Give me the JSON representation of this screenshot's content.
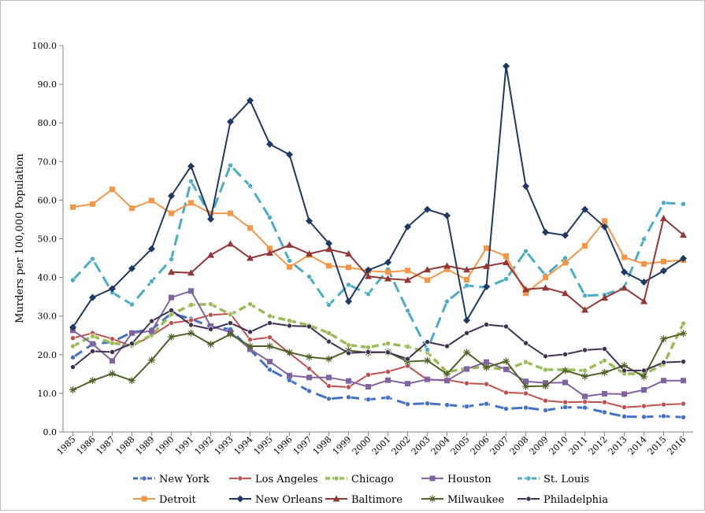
{
  "chart_data": {
    "type": "line",
    "title": "",
    "xlabel": "",
    "ylabel": "Murders per 100,000 Population",
    "ylim": [
      0,
      100
    ],
    "yticks": [
      "0.0",
      "10.0",
      "20.0",
      "30.0",
      "40.0",
      "50.0",
      "60.0",
      "70.0",
      "80.0",
      "90.0",
      "100.0"
    ],
    "grid": false,
    "legend_position": "bottom",
    "x": [
      "1985",
      "1986",
      "1987",
      "1988",
      "1989",
      "1990",
      "1991",
      "1992",
      "1993",
      "1994",
      "1995",
      "1996",
      "1997",
      "1998",
      "1999",
      "2000",
      "2001",
      "2002",
      "2003",
      "2004",
      "2005",
      "2006",
      "2007",
      "2008",
      "2009",
      "2010",
      "2011",
      "2012",
      "2013",
      "2014",
      "2015",
      "2016"
    ],
    "series": [
      {
        "name": "New York",
        "color": "#4472c4",
        "dash": "long-dash",
        "marker": "circle",
        "values": [
          19.3,
          22.7,
          23.3,
          25.8,
          26.5,
          30.7,
          29.3,
          27.2,
          26.6,
          21.3,
          16.1,
          13.4,
          10.6,
          8.6,
          9.0,
          8.4,
          8.9,
          7.2,
          7.4,
          7.0,
          6.6,
          7.3,
          6.0,
          6.3,
          5.6,
          6.4,
          6.3,
          5.1,
          4.0,
          3.9,
          4.1,
          3.8
        ]
      },
      {
        "name": "Los Angeles",
        "color": "#c0504d",
        "dash": "solid",
        "marker": "circle",
        "values": [
          24.3,
          25.6,
          24.1,
          22.2,
          24.9,
          28.2,
          28.9,
          30.3,
          30.6,
          23.9,
          24.5,
          20.4,
          16.4,
          11.9,
          11.6,
          14.8,
          15.6,
          17.1,
          13.5,
          13.5,
          12.6,
          12.4,
          10.2,
          10.0,
          8.1,
          7.7,
          7.8,
          7.7,
          6.4,
          6.7,
          7.1,
          7.3
        ]
      },
      {
        "name": "Chicago",
        "color": "#9bbb59",
        "dash": "dash",
        "marker": "circle",
        "values": [
          22.2,
          24.8,
          23.0,
          22.4,
          25.1,
          30.4,
          32.9,
          33.1,
          30.4,
          33.1,
          30.0,
          28.8,
          27.6,
          25.6,
          22.5,
          21.9,
          22.9,
          22.1,
          20.6,
          15.5,
          16.5,
          16.8,
          16.1,
          18.1,
          16.1,
          16.1,
          15.9,
          18.5,
          15.1,
          15.0,
          17.5,
          28.1
        ]
      },
      {
        "name": "Houston",
        "color": "#8064a2",
        "dash": "solid",
        "marker": "square",
        "values": [
          26.3,
          22.8,
          18.4,
          25.6,
          26.1,
          34.8,
          36.5,
          27.4,
          25.8,
          21.4,
          18.2,
          14.6,
          14.1,
          14.1,
          13.2,
          11.7,
          13.4,
          12.5,
          13.6,
          13.3,
          16.3,
          18.1,
          16.2,
          13.1,
          12.7,
          12.8,
          9.2,
          9.9,
          9.8,
          10.9,
          13.3,
          13.3
        ]
      },
      {
        "name": "St. Louis",
        "color": "#4bacc6",
        "dash": "long-dash",
        "marker": "circle",
        "values": [
          39.3,
          44.8,
          36.1,
          33.0,
          39.0,
          44.7,
          64.9,
          55.8,
          69.0,
          63.7,
          55.5,
          44.3,
          40.2,
          32.9,
          38.1,
          35.7,
          42.1,
          31.4,
          21.3,
          33.8,
          37.9,
          37.4,
          39.6,
          46.8,
          40.5,
          45.0,
          35.3,
          35.5,
          37.4,
          49.9,
          59.3,
          59.0
        ]
      },
      {
        "name": "Detroit",
        "color": "#f79646",
        "dash": "solid",
        "marker": "square",
        "values": [
          58.2,
          59.0,
          62.8,
          57.9,
          59.9,
          56.6,
          59.3,
          56.6,
          56.6,
          52.8,
          47.5,
          42.7,
          45.8,
          43.0,
          42.6,
          41.7,
          41.4,
          41.8,
          39.3,
          42.1,
          39.4,
          47.6,
          45.5,
          35.9,
          40.0,
          43.8,
          48.2,
          54.6,
          45.2,
          43.5,
          44.1,
          44.5
        ]
      },
      {
        "name": "New Orleans",
        "color": "#1f3864",
        "dash": "solid",
        "marker": "diamond",
        "values": [
          27.1,
          34.8,
          37.1,
          42.3,
          47.4,
          61.1,
          68.8,
          55.1,
          80.3,
          85.8,
          74.5,
          71.8,
          54.6,
          48.8,
          33.8,
          41.9,
          43.9,
          53.1,
          57.6,
          56.0,
          28.9,
          37.6,
          94.7,
          63.6,
          51.7,
          50.9,
          57.6,
          53.1,
          41.4,
          38.8,
          41.7,
          44.9
        ]
      },
      {
        "name": "Baltimore",
        "color": "#943634",
        "dash": "solid",
        "marker": "triangle",
        "values": [
          null,
          null,
          null,
          null,
          null,
          41.4,
          41.2,
          45.8,
          48.7,
          45.0,
          46.3,
          48.4,
          46.1,
          47.3,
          46.1,
          40.3,
          39.7,
          39.3,
          42.0,
          43.0,
          42.0,
          42.9,
          43.9,
          36.9,
          37.3,
          35.9,
          31.6,
          34.7,
          37.3,
          33.8,
          55.3,
          51.0
        ]
      },
      {
        "name": "Milwaukee",
        "color": "#4f6228",
        "dash": "solid",
        "marker": "star",
        "values": [
          10.9,
          13.3,
          15.1,
          13.3,
          18.6,
          24.6,
          25.6,
          22.7,
          25.3,
          22.2,
          22.2,
          20.6,
          19.4,
          18.9,
          21.1,
          20.5,
          20.7,
          18.2,
          18.5,
          15.0,
          20.6,
          16.7,
          18.3,
          11.8,
          11.9,
          15.9,
          14.4,
          15.4,
          17.2,
          14.3,
          24.1,
          25.5
        ]
      },
      {
        "name": "Philadelphia",
        "color": "#403152",
        "dash": "solid",
        "marker": "circle",
        "values": [
          16.8,
          20.9,
          20.7,
          22.9,
          28.7,
          31.5,
          27.7,
          26.6,
          28.2,
          25.9,
          28.2,
          27.5,
          27.3,
          23.4,
          20.4,
          20.7,
          20.6,
          18.9,
          23.3,
          22.2,
          25.6,
          27.8,
          27.3,
          23.0,
          19.6,
          20.1,
          21.2,
          21.5,
          15.9,
          15.9,
          18.0,
          18.2
        ]
      }
    ]
  }
}
